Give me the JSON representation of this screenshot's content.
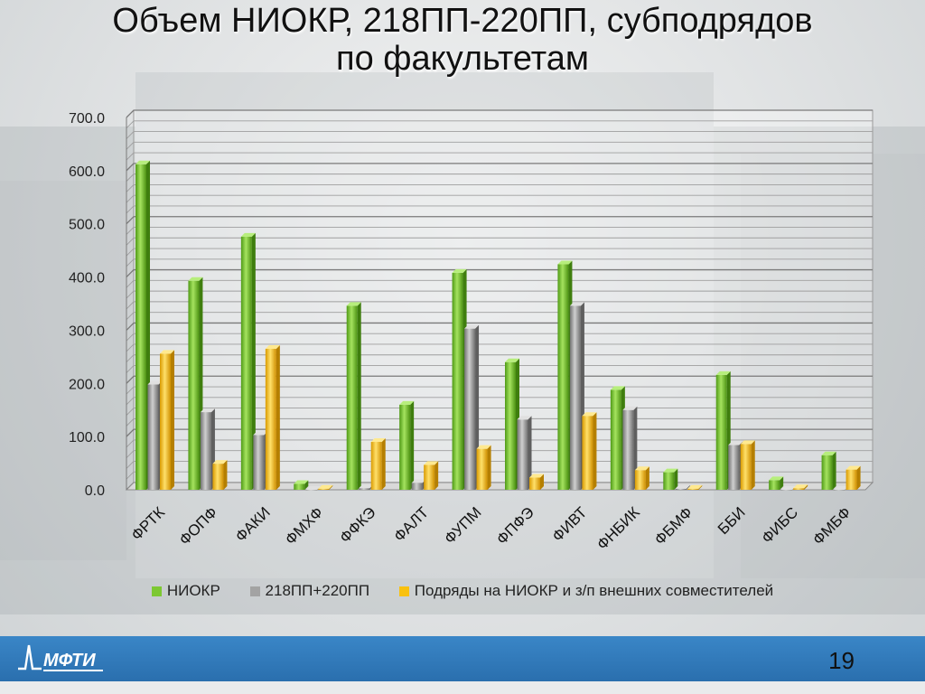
{
  "title_line1": "Объем НИОКР, 218ПП-220ПП, субподрядов",
  "title_line2": "по факультетам",
  "logo_text": "МФТИ",
  "page_number": "19",
  "colors": {
    "niokr": "#7dc832",
    "pp218": "#a3a3a3",
    "subcontract": "#f9c10f"
  },
  "chart_data": {
    "type": "bar",
    "categories": [
      "ФРТК",
      "ФОПФ",
      "ФАКИ",
      "ФМХФ",
      "ФФКЭ",
      "ФАЛТ",
      "ФУПМ",
      "ФПФЭ",
      "ФИВТ",
      "ФНБИК",
      "ФБМФ",
      "ББИ",
      "ФИБС",
      "ФМБФ"
    ],
    "series": [
      {
        "name": "НИОКР",
        "values": [
          612,
          393,
          476,
          11,
          346,
          160,
          408,
          240,
          424,
          188,
          33,
          216,
          18,
          65
        ]
      },
      {
        "name": "218ПП+220ПП",
        "values": [
          198,
          146,
          103,
          0,
          3,
          13,
          303,
          132,
          346,
          150,
          2,
          84,
          0,
          0
        ]
      },
      {
        "name": "Подряды на НИОКР и з/п внешних совместителей",
        "values": [
          256,
          49,
          265,
          2,
          90,
          47,
          77,
          23,
          139,
          37,
          2,
          86,
          3,
          38
        ]
      }
    ],
    "ylim": [
      0,
      700
    ],
    "yticks": [
      "0.0",
      "100.0",
      "200.0",
      "300.0",
      "400.0",
      "500.0",
      "600.0",
      "700.0"
    ],
    "grid": true,
    "legend_position": "bottom"
  }
}
